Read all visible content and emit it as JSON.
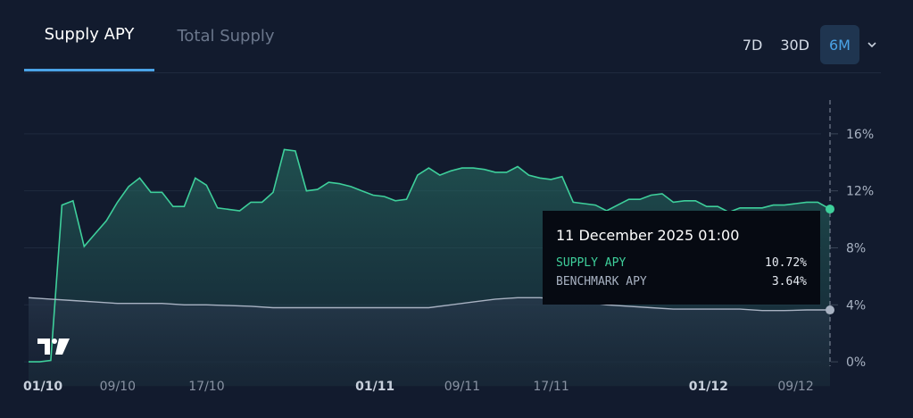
{
  "tabs": [
    {
      "label": "Supply APY",
      "active": true
    },
    {
      "label": "Total Supply",
      "active": false
    }
  ],
  "ranges": [
    {
      "label": "7D",
      "active": false
    },
    {
      "label": "30D",
      "active": false
    },
    {
      "label": "6M",
      "active": true
    }
  ],
  "icons": {
    "dropdown": "chevron-down-icon",
    "logo": "tradingview-logo"
  },
  "colors": {
    "supply": "#3ecf9b",
    "benchmark": "#a8b2c2",
    "accent": "#4aa3e6"
  },
  "tooltip": {
    "title": "11 December 2025 01:00",
    "rows": [
      {
        "label": "SUPPLY APY",
        "value": "10.72%"
      },
      {
        "label": "BENCHMARK APY",
        "value": "3.64%"
      }
    ]
  },
  "chart_data": {
    "type": "area",
    "x_ticks": [
      {
        "label": "01/10",
        "day": 0,
        "bold": true
      },
      {
        "label": "09/10",
        "day": 8,
        "bold": false
      },
      {
        "label": "17/10",
        "day": 16,
        "bold": false
      },
      {
        "label": "01/11",
        "day": 31,
        "bold": true
      },
      {
        "label": "09/11",
        "day": 39,
        "bold": false
      },
      {
        "label": "17/11",
        "day": 47,
        "bold": false
      },
      {
        "label": "01/12",
        "day": 61,
        "bold": true
      },
      {
        "label": "09/12",
        "day": 69,
        "bold": false
      }
    ],
    "y_ticks": [
      "0%",
      "4%",
      "8%",
      "12%",
      "16%"
    ],
    "ylim": [
      -2,
      19
    ],
    "grid": true,
    "series": [
      {
        "name": "SUPPLY APY",
        "x": [
          0,
          1,
          2,
          3,
          4,
          5,
          6,
          7,
          8,
          9,
          10,
          11,
          12,
          13,
          14,
          15,
          16,
          17,
          18,
          19,
          20,
          21,
          22,
          23,
          24,
          25,
          26,
          27,
          28,
          29,
          30,
          31,
          32,
          33,
          34,
          35,
          36,
          37,
          38,
          39,
          40,
          41,
          42,
          43,
          44,
          45,
          46,
          47,
          48,
          49,
          50,
          51,
          52,
          53,
          54,
          55,
          56,
          57,
          58,
          59,
          60,
          61,
          62,
          63,
          64,
          65,
          66,
          67,
          68,
          69,
          70,
          71,
          72.1
        ],
        "y": [
          0,
          0,
          0.1,
          11,
          11.3,
          8.1,
          9,
          9.9,
          11.2,
          12.3,
          12.9,
          11.9,
          11.9,
          10.9,
          10.9,
          12.9,
          12.4,
          10.8,
          10.7,
          10.6,
          11.2,
          11.2,
          11.9,
          14.9,
          14.8,
          12,
          12.1,
          12.6,
          12.5,
          12.3,
          12,
          11.7,
          11.6,
          11.3,
          11.4,
          13.1,
          13.6,
          13.1,
          13.4,
          13.6,
          13.6,
          13.5,
          13.3,
          13.3,
          13.7,
          13.1,
          12.9,
          12.8,
          13,
          11.2,
          11.1,
          11,
          10.6,
          11,
          11.4,
          11.4,
          11.7,
          11.8,
          11.2,
          11.3,
          11.3,
          10.9,
          10.9,
          10.5,
          10.8,
          10.8,
          10.8,
          11,
          11,
          11.1,
          11.2,
          11.2,
          10.72
        ]
      },
      {
        "name": "BENCHMARK APY",
        "x": [
          0,
          2,
          4,
          6,
          8,
          10,
          12,
          14,
          16,
          18,
          20,
          22,
          24,
          26,
          28,
          30,
          32,
          34,
          36,
          38,
          40,
          42,
          44,
          46,
          48,
          50,
          52,
          54,
          56,
          58,
          60,
          62,
          64,
          66,
          68,
          70,
          72.1
        ],
        "y": [
          4.5,
          4.4,
          4.3,
          4.2,
          4.1,
          4.1,
          4.1,
          4,
          4,
          3.95,
          3.9,
          3.8,
          3.8,
          3.8,
          3.8,
          3.8,
          3.8,
          3.8,
          3.8,
          4.0,
          4.2,
          4.4,
          4.5,
          4.5,
          4.4,
          4.2,
          4,
          3.9,
          3.8,
          3.7,
          3.7,
          3.7,
          3.7,
          3.6,
          3.6,
          3.64,
          3.64
        ]
      }
    ]
  }
}
